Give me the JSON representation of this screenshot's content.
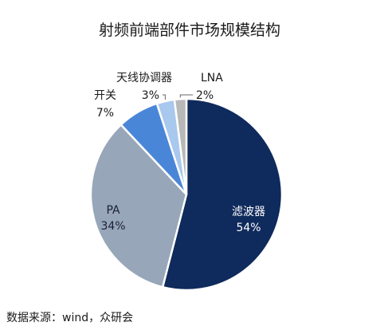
{
  "chart_data": {
    "type": "pie",
    "title": "射频前端部件市场规模结构",
    "slices": [
      {
        "name": "滤波器",
        "value": 54,
        "value_label": "54%",
        "color": "#0f2a5c"
      },
      {
        "name": "PA",
        "value": 34,
        "value_label": "34%",
        "color": "#97a6b8"
      },
      {
        "name": "开关",
        "value": 7,
        "value_label": "7%",
        "color": "#4a86d8"
      },
      {
        "name": "天线协调器",
        "value": 3,
        "value_label": "3%",
        "color": "#a9c8ee"
      },
      {
        "name": "LNA",
        "value": 2,
        "value_label": "2%",
        "color": "#b8b8b8"
      }
    ]
  },
  "source_text": "数据来源：wind，众研会"
}
